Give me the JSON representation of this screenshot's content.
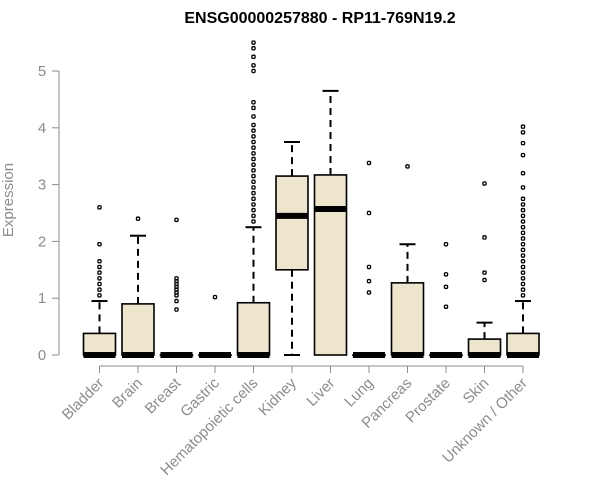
{
  "chart_data": {
    "type": "box",
    "title": "ENSG00000257880 - RP11-769N19.2",
    "xlabel": "",
    "ylabel": "Expression",
    "ylim": [
      0,
      5.5
    ],
    "yticks": [
      0,
      1,
      2,
      3,
      4,
      5
    ],
    "grid": false,
    "colors": {
      "box_fill": "#ede6cc",
      "stroke": "#000000",
      "axis": "#8c8c8c"
    },
    "categories": [
      "Bladder",
      "Brain",
      "Breast",
      "Gastric",
      "Hematopoietic cells",
      "Kidney",
      "Liver",
      "Lung",
      "Pancreas",
      "Prostate",
      "Skin",
      "Unknown / Other"
    ],
    "boxes": [
      {
        "q1": 0,
        "median": 0,
        "q3": 0.38,
        "whisker_low": 0,
        "whisker_high": 0.95,
        "outliers": [
          1.05,
          1.15,
          1.25,
          1.35,
          1.45,
          1.55,
          1.65,
          1.95,
          2.6
        ]
      },
      {
        "q1": 0,
        "median": 0,
        "q3": 0.9,
        "whisker_low": 0,
        "whisker_high": 2.1,
        "outliers": [
          2.4
        ]
      },
      {
        "q1": 0,
        "median": 0,
        "q3": 0,
        "whisker_low": 0,
        "whisker_high": 0,
        "outliers": [
          0.8,
          0.95,
          1.05,
          1.1,
          1.15,
          1.2,
          1.25,
          1.3,
          1.35,
          2.38
        ]
      },
      {
        "q1": 0,
        "median": 0,
        "q3": 0,
        "whisker_low": 0,
        "whisker_high": 0,
        "outliers": [
          1.02
        ]
      },
      {
        "q1": 0,
        "median": 0,
        "q3": 0.92,
        "whisker_low": 0,
        "whisker_high": 2.25,
        "outliers": [
          2.35,
          2.45,
          2.55,
          2.65,
          2.75,
          2.85,
          2.95,
          3.05,
          3.15,
          3.25,
          3.35,
          3.45,
          3.55,
          3.65,
          3.75,
          3.85,
          3.95,
          4.05,
          4.2,
          4.35,
          4.45,
          5.0,
          5.1,
          5.25,
          5.4,
          5.5
        ]
      },
      {
        "q1": 1.5,
        "median": 2.45,
        "q3": 3.15,
        "whisker_low": 0,
        "whisker_high": 3.75,
        "outliers": []
      },
      {
        "q1": 0,
        "median": 2.57,
        "q3": 3.17,
        "whisker_low": 0,
        "whisker_high": 4.65,
        "outliers": []
      },
      {
        "q1": 0,
        "median": 0,
        "q3": 0,
        "whisker_low": 0,
        "whisker_high": 0,
        "outliers": [
          1.1,
          1.3,
          1.55,
          2.5,
          3.38
        ]
      },
      {
        "q1": 0,
        "median": 0,
        "q3": 1.27,
        "whisker_low": 0,
        "whisker_high": 1.95,
        "outliers": [
          3.32
        ]
      },
      {
        "q1": 0,
        "median": 0,
        "q3": 0,
        "whisker_low": 0,
        "whisker_high": 0,
        "outliers": [
          0.85,
          1.2,
          1.42,
          1.95
        ]
      },
      {
        "q1": 0,
        "median": 0,
        "q3": 0.28,
        "whisker_low": 0,
        "whisker_high": 0.57,
        "outliers": [
          1.32,
          1.45,
          2.07,
          3.02
        ]
      },
      {
        "q1": 0,
        "median": 0,
        "q3": 0.38,
        "whisker_low": 0,
        "whisker_high": 0.95,
        "outliers": [
          1.05,
          1.15,
          1.25,
          1.35,
          1.45,
          1.55,
          1.65,
          1.75,
          1.85,
          1.95,
          2.05,
          2.15,
          2.25,
          2.35,
          2.45,
          2.55,
          2.65,
          2.75,
          2.95,
          3.2,
          3.52,
          3.73,
          3.92,
          4.02
        ]
      }
    ]
  }
}
